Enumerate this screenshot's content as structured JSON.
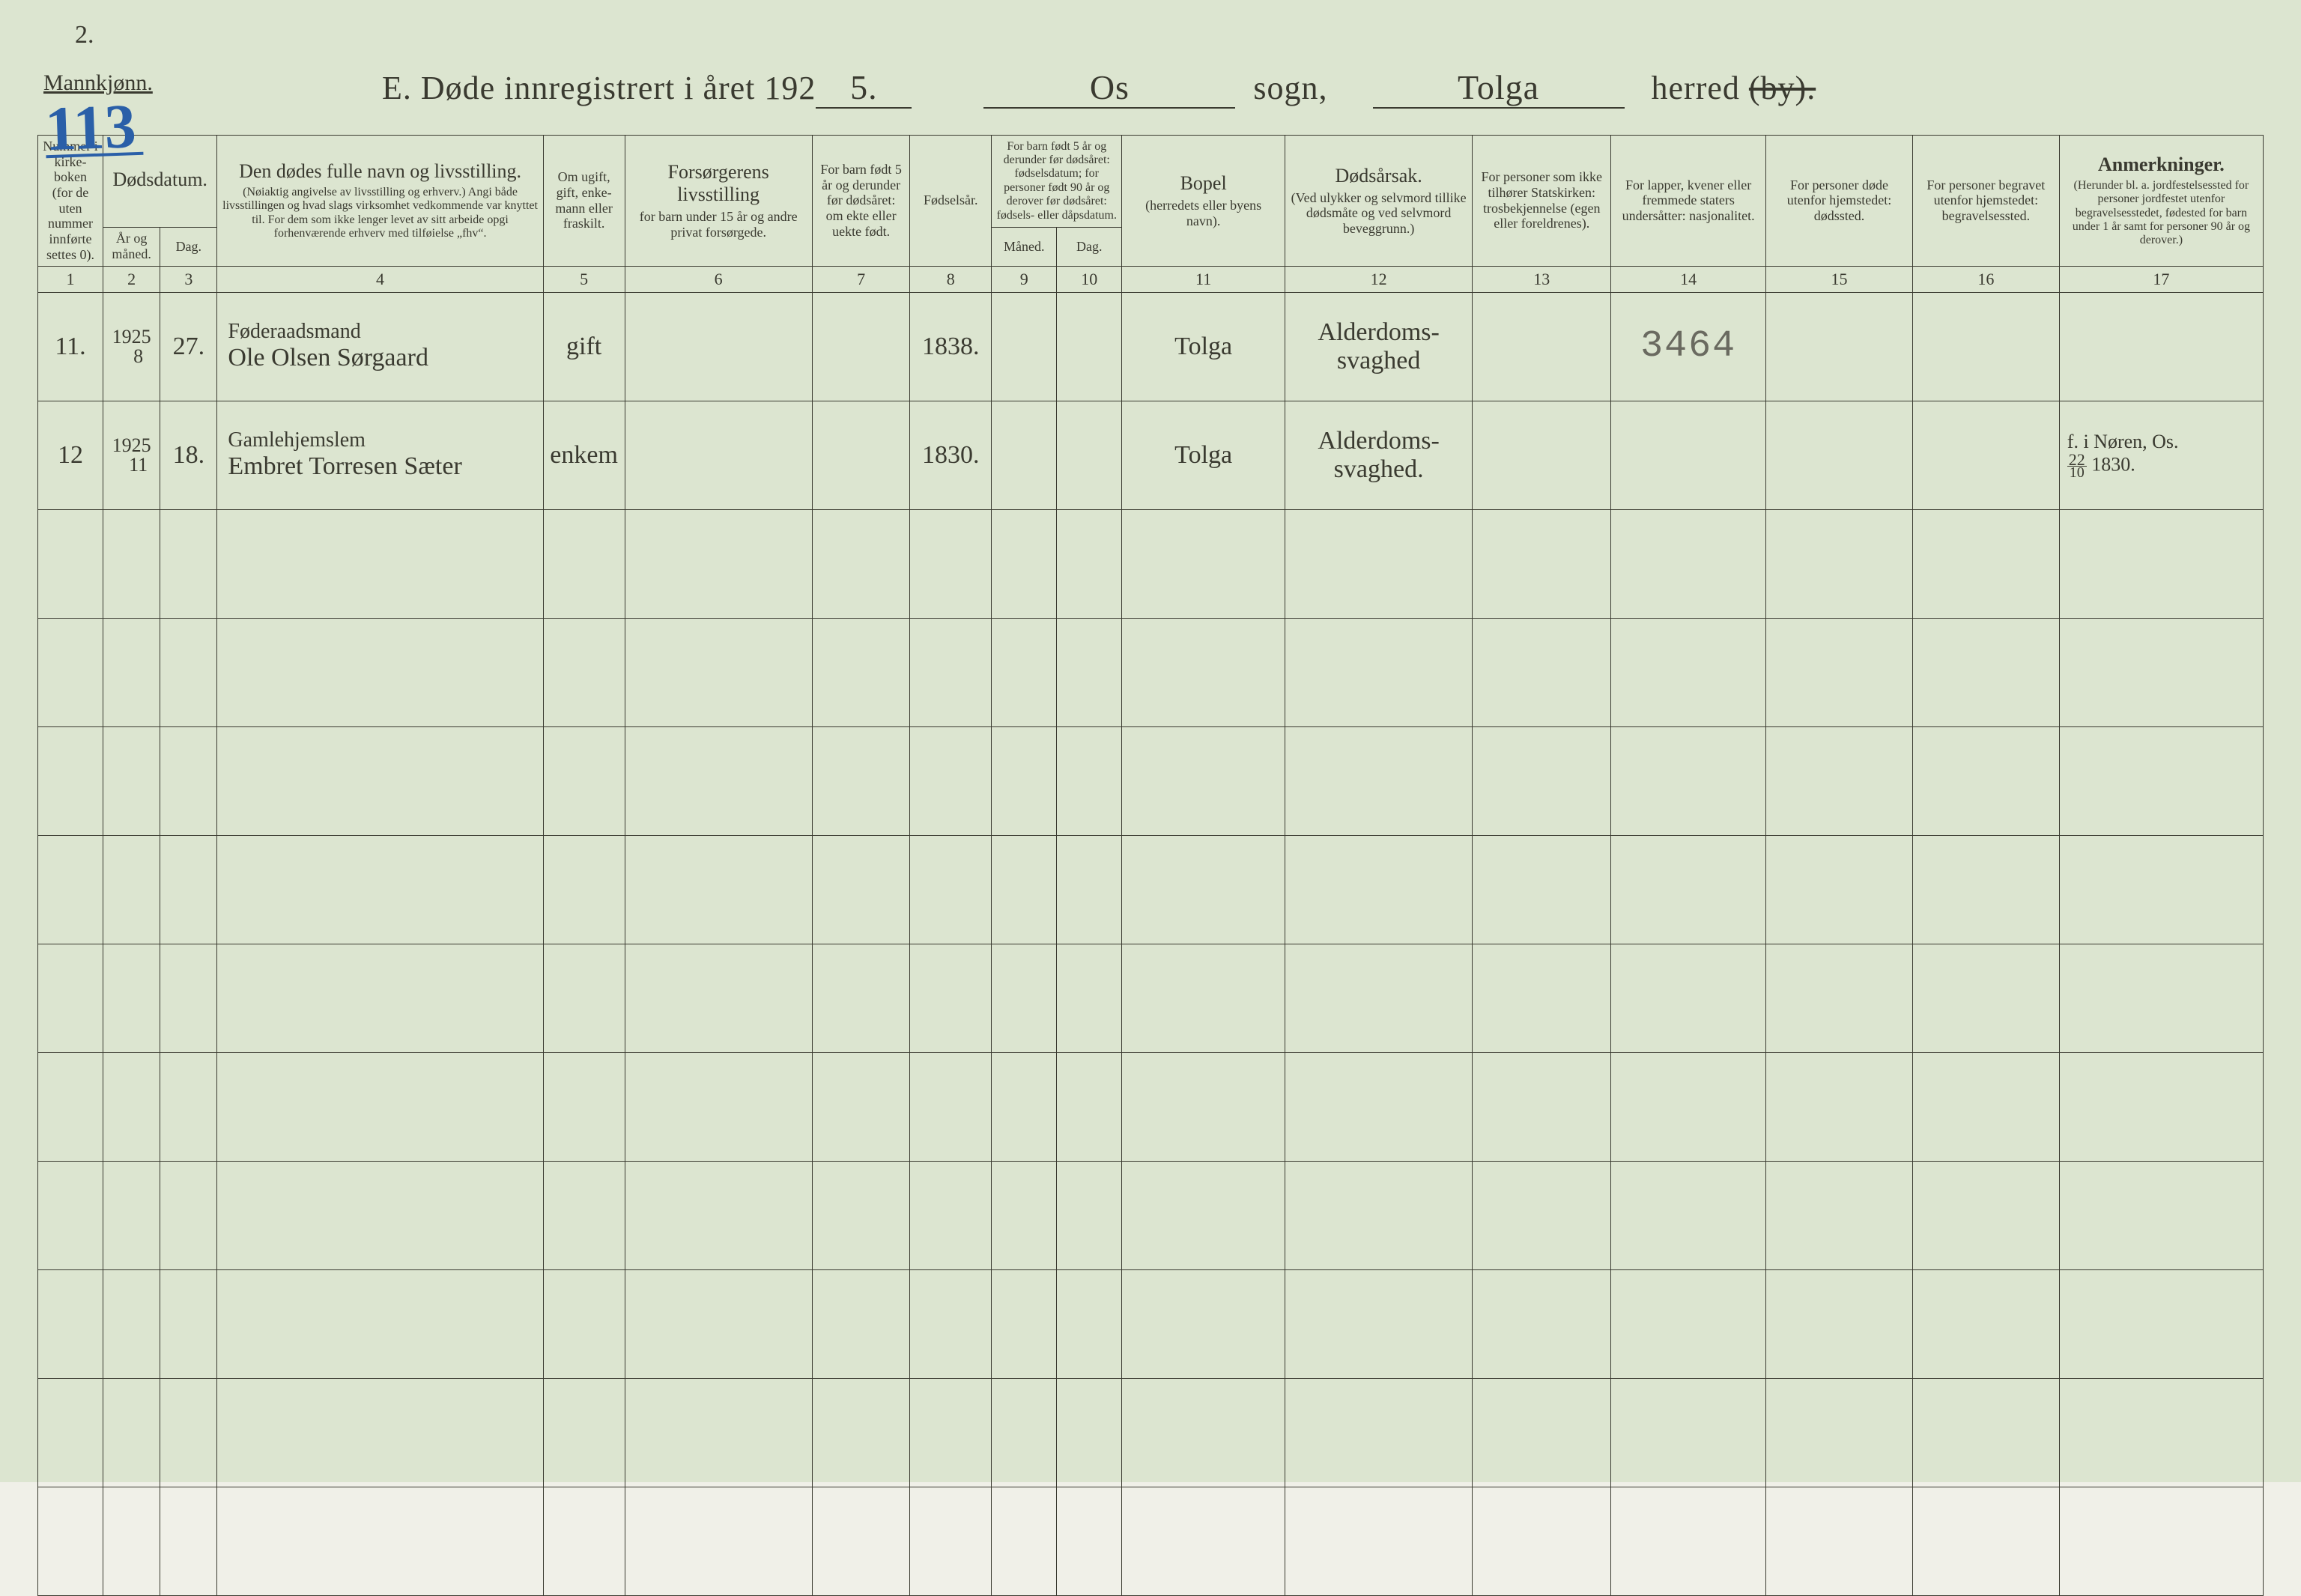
{
  "top_corner_number": "2.",
  "mannkjonn": "Mannkjønn.",
  "page_number": "113",
  "title": {
    "prefix": "E.   Døde  innregistrert  i  året  192",
    "year_suffix": "5.",
    "sogn_val": "Os",
    "sogn_label": "sogn,",
    "herred_val": "Tolga",
    "herred_label": "herred",
    "by_struck": "(by)."
  },
  "headers": {
    "c1": {
      "text": "Nummer i kirke­boken (for de uten nummer innførte settes 0)."
    },
    "c2_3_top": "Dødsdatum.",
    "c2": "År og måned.",
    "c3": "Dag.",
    "c4": {
      "title": "Den dødes fulle navn og livsstilling.",
      "sub": "(Nøiaktig angivelse av livsstilling og erhverv.) Angi både livsstillingen og hvad slags virksomhet vedkommende var knyttet til. For dem som ikke lenger levet av sitt arbeide opgi forhenværende erhverv med tilføielse „fhv“."
    },
    "c5": "Om ugift, gift, enke­mann eller fraskilt.",
    "c6": {
      "title": "Forsørgerens livsstilling",
      "sub": "for barn under 15 år og andre privat forsørgede."
    },
    "c7": "For barn født 5 år og derunder før døds­året: om ekte eller uekte født.",
    "c8": "Fødsels­år.",
    "c9_10_top": "For barn født 5 år og der­under før dødsåret: fødselsdatum; for personer født 90 år og derover før dødsåret: fødsels- eller dåpsdatum.",
    "c9": "Måned.",
    "c10": "Dag.",
    "c11": {
      "title": "Bopel",
      "sub": "(herredets eller byens navn)."
    },
    "c12": {
      "title": "Dødsårsak.",
      "sub": "(Ved ulykker og selv­mord tillike dødsmåte og ved selvmord beveggrunn.)"
    },
    "c13": "For personer som ikke tilhører Statskirken: trosbekjennelse (egen eller foreldrenes).",
    "c14": "For lapper, kvener eller fremmede staters undersåtter: nasjonalitet.",
    "c15": "For personer døde utenfor hjemstedet: dødssted.",
    "c16": "For personer begravet utenfor hjemstedet: begravelsessted.",
    "c17": {
      "title": "Anmerkninger.",
      "sub": "(Herunder bl. a. jord­festelsessted for per­soner jordfestet utenfor begravelsesstedet, føde­sted for barn under 1 år samt for personer 90 år og derover.)"
    }
  },
  "colnums": [
    "1",
    "2",
    "3",
    "4",
    "5",
    "6",
    "7",
    "8",
    "9",
    "10",
    "11",
    "12",
    "13",
    "14",
    "15",
    "16",
    "17"
  ],
  "rows": [
    {
      "num": "11.",
      "year": "1925",
      "month": "8",
      "day": "27.",
      "occupation": "Føderaadsmand",
      "name": "Ole Olsen Sørgaard",
      "marital": "gift",
      "provider": "",
      "born_under5": "",
      "birth_year": "1838.",
      "bd_month": "",
      "bd_day": "",
      "residence": "Tolga",
      "cause": "Alderdoms-\nsvaghed",
      "religion": "",
      "nationality": "3464",
      "deathplace": "",
      "burialplace": "",
      "notes": ""
    },
    {
      "num": "12",
      "year": "1925",
      "month": "11",
      "day": "18.",
      "occupation": "Gamlehjemslem",
      "name": "Embret Torresen Sæter",
      "marital": "enkem",
      "provider": "",
      "born_under5": "",
      "birth_year": "1830.",
      "bd_month": "",
      "bd_day": "",
      "residence": "Tolga",
      "cause": "Alderdoms-\nsvaghed.",
      "religion": "",
      "nationality": "",
      "deathplace": "",
      "burialplace": "",
      "notes_prefix": "f. i Nøren, Os.",
      "notes_frac_num": "22",
      "notes_frac_den": "10",
      "notes_suffix": " 1830."
    }
  ],
  "empty_rows": 10,
  "styling": {
    "page_bg": "#dce5d0",
    "ink_color": "#3a3a30",
    "page_number_color": "#2a5fa8",
    "pencil_color": "#6a6a60",
    "border_color": "#3a3a30",
    "body_font": "Times New Roman",
    "script_font": "Brush Script MT",
    "header_fontsize": 22,
    "header_title_fontsize": 26,
    "data_fontsize": 34,
    "page_number_fontsize": 84,
    "title_fontsize": 44
  }
}
